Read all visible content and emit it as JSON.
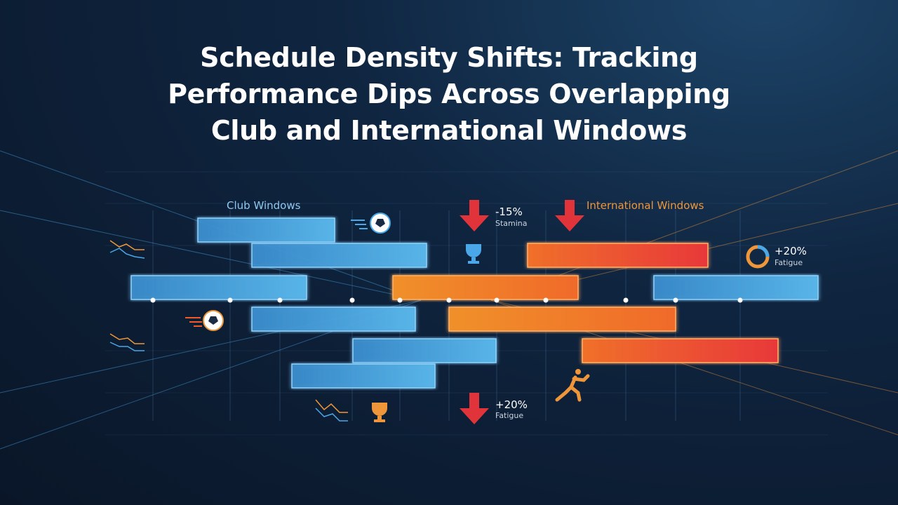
{
  "title": "Schedule Density Shifts: Tracking Performance Dips Across Overlapping Club and International Windows",
  "legend": {
    "club": "Club Windows",
    "international": "International Windows"
  },
  "annotations": [
    {
      "value": "-15%",
      "label": "Stamina"
    },
    {
      "value": "+20%",
      "label": "Fatigue"
    },
    {
      "value": "+20%",
      "label": "Fatigue"
    }
  ]
}
